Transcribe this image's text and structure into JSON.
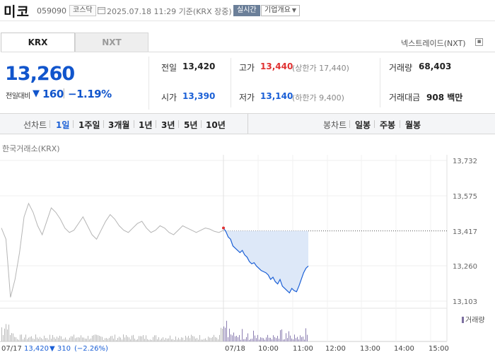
{
  "header": {
    "name": "미코",
    "code": "059090",
    "market": "코스닥",
    "datetime": "2025.07.18 11:29 기준(KRX 장중)",
    "realtime": "실시간",
    "overview": "기업개요"
  },
  "tabs": {
    "krx": "KRX",
    "nxt": "NXT"
  },
  "nextrade_link": "넥스트레이드(NXT)",
  "price": {
    "current": "13,260",
    "change_label": "전일대비",
    "change_arrow": "▼",
    "change_value": "160",
    "change_pct": "−1.19%"
  },
  "stats": {
    "prev_close_label": "전일",
    "prev_close": "13,420",
    "high_label": "고가",
    "high": "13,440",
    "upper_limit": "(상한가 17,440)",
    "volume_label": "거래량",
    "volume": "68,403",
    "open_label": "시가",
    "open": "13,390",
    "low_label": "저가",
    "low": "13,140",
    "lower_limit": "(하한가 9,400)",
    "amount_label": "거래대금",
    "amount": "908 백만"
  },
  "periods": {
    "line_label": "선차트",
    "line_items": [
      "1일",
      "1주일",
      "3개월",
      "1년",
      "3년",
      "5년",
      "10년"
    ],
    "candle_label": "봉차트",
    "candle_items": [
      "일봉",
      "주봉",
      "월봉"
    ]
  },
  "chart_source": "한국거래소(KRX)",
  "volume_legend": "거래량",
  "colors": {
    "price_blue": "#1a5fd6",
    "down_blue": "#1155cc",
    "up_red": "#e03131",
    "prev_day_gray": "#aaaaaa",
    "fill": "#dde8f8"
  },
  "chart_data": {
    "type": "line",
    "y_ticks": [
      "13,732",
      "13,575",
      "13,417",
      "13,260",
      "13,103"
    ],
    "ylim": [
      13103,
      13732
    ],
    "reference_line": 13417,
    "x_ticks": [
      "07/17",
      "07/18",
      "10:00",
      "11:00",
      "12:00",
      "13:00",
      "14:00",
      "15:00"
    ],
    "prev_day_summary": {
      "date": "07/17",
      "close": "13,420",
      "change": "▼ 310",
      "change_pct": "(−2.26%)"
    },
    "series": [
      {
        "values": [
          13430,
          13380,
          13120,
          13200,
          13320,
          13480,
          13540,
          13500,
          13440,
          13400,
          13460,
          13520,
          13500,
          13470,
          13430,
          13410,
          13420,
          13450,
          13480,
          13440,
          13400,
          13380,
          13420,
          13460,
          13490,
          13470,
          13440,
          13420,
          13410,
          13430,
          13450,
          13460,
          13430,
          13410,
          13420,
          13440,
          13430,
          13410,
          13400,
          13420,
          13440,
          13430,
          13420,
          13410,
          13420,
          13430,
          13425,
          13415,
          13410,
          13420
        ]
      },
      {
        "values": [
          13430,
          13415,
          13390,
          13380,
          13350,
          13340,
          13330,
          13320,
          13330,
          13310,
          13300,
          13280,
          13270,
          13275,
          13260,
          13250,
          13240,
          13235,
          13230,
          13220,
          13200,
          13210,
          13190,
          13180,
          13200,
          13170,
          13160,
          13150,
          13140,
          13160,
          13150,
          13145,
          13170,
          13200,
          13230,
          13250,
          13260
        ]
      }
    ]
  }
}
